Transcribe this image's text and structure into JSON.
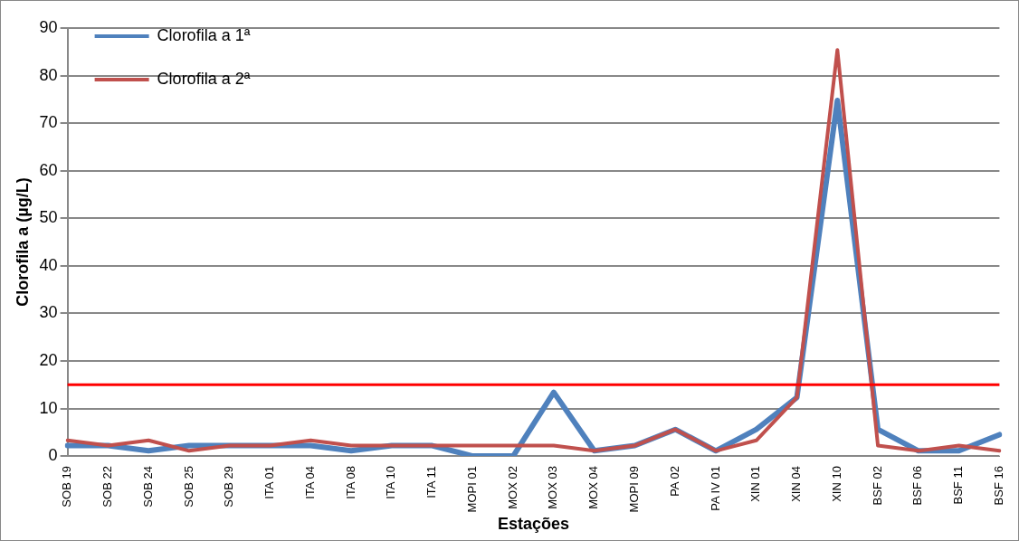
{
  "chart_data": {
    "type": "line",
    "xlabel": "Estações",
    "ylabel": "Clorofila a (µg/L)",
    "categories": [
      "SOB 19",
      "SOB 22",
      "SOB 24",
      "SOB 25",
      "SOB 29",
      "ITA 01",
      "ITA 04",
      "ITA 08",
      "ITA 10",
      "ITA 11",
      "MOPI 01",
      "MOX 02",
      "MOX 03",
      "MOX 04",
      "MOPI 09",
      "PA 02",
      "PA IV 01",
      "XIN 01",
      "XIN 04",
      "XIN 10",
      "BSF 02",
      "BSF 06",
      "BSF 11",
      "BSF 16"
    ],
    "series": [
      {
        "name": "Clorofila a 1ª",
        "color": "#4f81bd",
        "values": [
          2.2,
          2.2,
          1.1,
          2.2,
          2.2,
          2.2,
          2.2,
          1.1,
          2.2,
          2.2,
          0,
          0,
          13.4,
          1.1,
          2.2,
          5.6,
          1.1,
          5.6,
          12.3,
          74.8,
          5.6,
          1.1,
          1.1,
          4.5
        ]
      },
      {
        "name": "Clorofila a 2ª",
        "color": "#c0504d",
        "values": [
          3.3,
          2.2,
          3.3,
          1.1,
          2.2,
          2.2,
          3.3,
          2.2,
          2.2,
          2.2,
          2.2,
          2.2,
          2.2,
          1.1,
          2.2,
          5.6,
          1.1,
          3.3,
          12.3,
          85.4,
          2.2,
          1.1,
          2.2,
          1.1
        ]
      }
    ],
    "ylim": [
      0,
      90
    ],
    "yticks": [
      0,
      10,
      20,
      30,
      40,
      50,
      60,
      70,
      80,
      90
    ],
    "grid": "y",
    "legend": "top left",
    "marker": "none",
    "line_style": "solid",
    "ref_lines": [
      {
        "axis": "y",
        "value": 15,
        "color": "#ff0000"
      }
    ]
  }
}
